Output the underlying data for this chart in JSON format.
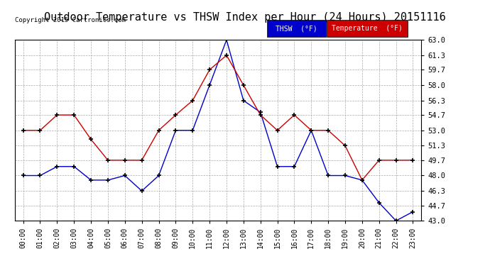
{
  "title": "Outdoor Temperature vs THSW Index per Hour (24 Hours) 20151116",
  "copyright": "Copyright 2015 Cartronics.com",
  "hours": [
    "00:00",
    "01:00",
    "02:00",
    "03:00",
    "04:00",
    "05:00",
    "06:00",
    "07:00",
    "08:00",
    "09:00",
    "10:00",
    "11:00",
    "12:00",
    "13:00",
    "14:00",
    "15:00",
    "16:00",
    "17:00",
    "18:00",
    "19:00",
    "20:00",
    "21:00",
    "22:00",
    "23:00"
  ],
  "thsw": [
    48.0,
    48.0,
    49.0,
    49.0,
    47.5,
    47.5,
    48.0,
    46.3,
    48.0,
    53.0,
    53.0,
    58.0,
    63.0,
    56.3,
    55.0,
    49.0,
    49.0,
    53.0,
    48.0,
    48.0,
    47.5,
    45.0,
    43.0,
    44.0
  ],
  "temperature": [
    53.0,
    53.0,
    54.7,
    54.7,
    52.0,
    49.7,
    49.7,
    49.7,
    53.0,
    54.7,
    56.3,
    59.7,
    61.3,
    58.0,
    54.7,
    53.0,
    54.7,
    53.0,
    53.0,
    51.3,
    47.5,
    49.7,
    49.7,
    49.7
  ],
  "ylim": [
    43.0,
    63.0
  ],
  "yticks": [
    43.0,
    44.7,
    46.3,
    48.0,
    49.7,
    51.3,
    53.0,
    54.7,
    56.3,
    58.0,
    59.7,
    61.3,
    63.0
  ],
  "thsw_color": "#0000cc",
  "temp_color": "#cc0000",
  "bg_color": "#ffffff",
  "grid_color": "#aaaaaa",
  "title_fontsize": 11,
  "legend_thsw_bg": "#0000cc",
  "legend_temp_bg": "#cc0000",
  "legend_thsw_label": "THSW  (°F)",
  "legend_temp_label": "Temperature  (°F)"
}
